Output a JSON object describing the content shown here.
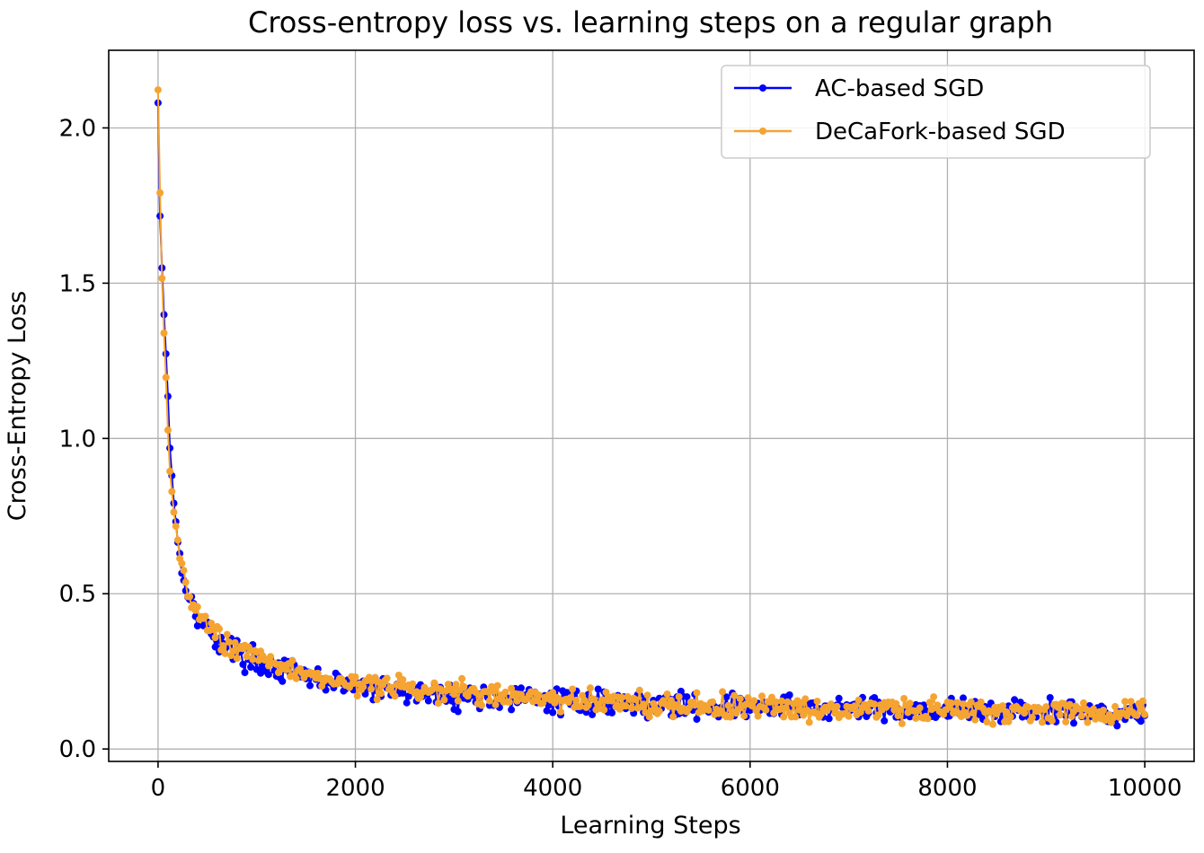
{
  "chart_data": {
    "type": "line",
    "title": "Cross-entropy loss vs. learning steps on a regular graph",
    "xlabel": "Learning Steps",
    "ylabel": "Cross-Entropy Loss",
    "xlim": [
      -500,
      10500
    ],
    "ylim": [
      -0.04,
      2.25
    ],
    "xticks": [
      0,
      2000,
      4000,
      6000,
      8000,
      10000
    ],
    "xtick_labels": [
      "0",
      "2000",
      "4000",
      "6000",
      "8000",
      "10000"
    ],
    "yticks": [
      0.0,
      0.5,
      1.0,
      1.5,
      2.0
    ],
    "ytick_labels": [
      "0.0",
      "0.5",
      "1.0",
      "1.5",
      "2.0"
    ],
    "grid": true,
    "legend_position": "upper-right",
    "x_start": 0,
    "x_end": 10000,
    "x_step": 20,
    "series": [
      {
        "name": "AC-based SGD",
        "color": "#0000ff",
        "marker": "circle",
        "anchor_x": [
          0,
          20,
          40,
          60,
          80,
          100,
          120,
          150,
          200,
          250,
          300,
          400,
          500,
          700,
          1000,
          1500,
          2000,
          3000,
          4000,
          5000,
          6000,
          7000,
          8000,
          9000,
          10000
        ],
        "anchor_y": [
          2.08,
          1.72,
          1.56,
          1.4,
          1.28,
          1.14,
          0.97,
          0.84,
          0.66,
          0.57,
          0.5,
          0.43,
          0.38,
          0.33,
          0.28,
          0.23,
          0.2,
          0.17,
          0.155,
          0.145,
          0.135,
          0.13,
          0.125,
          0.12,
          0.115
        ],
        "noise": 0.028,
        "seed": 17
      },
      {
        "name": "DeCaFork-based SGD",
        "color": "#f5a431",
        "marker": "circle",
        "anchor_x": [
          0,
          20,
          40,
          60,
          80,
          100,
          120,
          150,
          200,
          250,
          300,
          400,
          500,
          700,
          1000,
          1500,
          2000,
          3000,
          4000,
          5000,
          6000,
          7000,
          8000,
          9000,
          10000
        ],
        "anchor_y": [
          2.14,
          1.8,
          1.52,
          1.36,
          1.18,
          1.02,
          0.9,
          0.8,
          0.66,
          0.58,
          0.51,
          0.44,
          0.39,
          0.34,
          0.29,
          0.24,
          0.21,
          0.18,
          0.16,
          0.145,
          0.135,
          0.13,
          0.125,
          0.12,
          0.12
        ],
        "noise": 0.026,
        "seed": 43
      }
    ]
  }
}
